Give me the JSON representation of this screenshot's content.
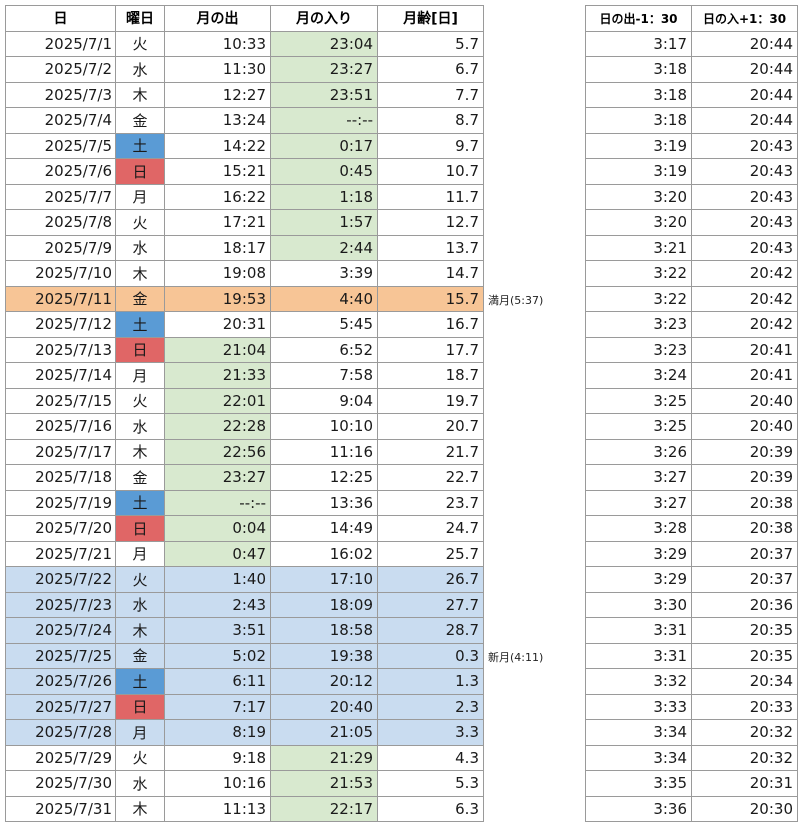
{
  "headers": {
    "date": "日",
    "dow": "曜日",
    "moonrise": "月の出",
    "moonset": "月の入り",
    "age": "月齢[日]",
    "sunrise_minus": "日の出-1：30",
    "sunset_plus": "日の入+1：30"
  },
  "colors": {
    "green": "#d8e9cf",
    "orange": "#f7c596",
    "blue": "#c9dcf0",
    "saturday": "#5a9bd5",
    "sunday": "#e06666"
  },
  "rows": [
    {
      "date": "2025/7/1",
      "dow": "火",
      "rise": "10:33",
      "set": "23:04",
      "age": "5.7",
      "sr": "3:17",
      "ss": "20:44",
      "rise_green": false,
      "set_green": true,
      "row": ""
    },
    {
      "date": "2025/7/2",
      "dow": "水",
      "rise": "11:30",
      "set": "23:27",
      "age": "6.7",
      "sr": "3:18",
      "ss": "20:44",
      "rise_green": false,
      "set_green": true,
      "row": ""
    },
    {
      "date": "2025/7/3",
      "dow": "木",
      "rise": "12:27",
      "set": "23:51",
      "age": "7.7",
      "sr": "3:18",
      "ss": "20:44",
      "rise_green": false,
      "set_green": true,
      "row": ""
    },
    {
      "date": "2025/7/4",
      "dow": "金",
      "rise": "13:24",
      "set": "--:--",
      "age": "8.7",
      "sr": "3:18",
      "ss": "20:44",
      "rise_green": false,
      "set_green": true,
      "row": ""
    },
    {
      "date": "2025/7/5",
      "dow": "土",
      "rise": "14:22",
      "set": "0:17",
      "age": "9.7",
      "sr": "3:19",
      "ss": "20:43",
      "rise_green": false,
      "set_green": true,
      "row": ""
    },
    {
      "date": "2025/7/6",
      "dow": "日",
      "rise": "15:21",
      "set": "0:45",
      "age": "10.7",
      "sr": "3:19",
      "ss": "20:43",
      "rise_green": false,
      "set_green": true,
      "row": ""
    },
    {
      "date": "2025/7/7",
      "dow": "月",
      "rise": "16:22",
      "set": "1:18",
      "age": "11.7",
      "sr": "3:20",
      "ss": "20:43",
      "rise_green": false,
      "set_green": true,
      "row": ""
    },
    {
      "date": "2025/7/8",
      "dow": "火",
      "rise": "17:21",
      "set": "1:57",
      "age": "12.7",
      "sr": "3:20",
      "ss": "20:43",
      "rise_green": false,
      "set_green": true,
      "row": ""
    },
    {
      "date": "2025/7/9",
      "dow": "水",
      "rise": "18:17",
      "set": "2:44",
      "age": "13.7",
      "sr": "3:21",
      "ss": "20:43",
      "rise_green": false,
      "set_green": true,
      "row": ""
    },
    {
      "date": "2025/7/10",
      "dow": "木",
      "rise": "19:08",
      "set": "3:39",
      "age": "14.7",
      "sr": "3:22",
      "ss": "20:42",
      "rise_green": false,
      "set_green": false,
      "row": ""
    },
    {
      "date": "2025/7/11",
      "dow": "金",
      "rise": "19:53",
      "set": "4:40",
      "age": "15.7",
      "sr": "3:22",
      "ss": "20:42",
      "rise_green": false,
      "set_green": false,
      "row": "orange",
      "note": "満月(5:37)"
    },
    {
      "date": "2025/7/12",
      "dow": "土",
      "rise": "20:31",
      "set": "5:45",
      "age": "16.7",
      "sr": "3:23",
      "ss": "20:42",
      "rise_green": false,
      "set_green": false,
      "row": ""
    },
    {
      "date": "2025/7/13",
      "dow": "日",
      "rise": "21:04",
      "set": "6:52",
      "age": "17.7",
      "sr": "3:23",
      "ss": "20:41",
      "rise_green": true,
      "set_green": false,
      "row": ""
    },
    {
      "date": "2025/7/14",
      "dow": "月",
      "rise": "21:33",
      "set": "7:58",
      "age": "18.7",
      "sr": "3:24",
      "ss": "20:41",
      "rise_green": true,
      "set_green": false,
      "row": ""
    },
    {
      "date": "2025/7/15",
      "dow": "火",
      "rise": "22:01",
      "set": "9:04",
      "age": "19.7",
      "sr": "3:25",
      "ss": "20:40",
      "rise_green": true,
      "set_green": false,
      "row": ""
    },
    {
      "date": "2025/7/16",
      "dow": "水",
      "rise": "22:28",
      "set": "10:10",
      "age": "20.7",
      "sr": "3:25",
      "ss": "20:40",
      "rise_green": true,
      "set_green": false,
      "row": ""
    },
    {
      "date": "2025/7/17",
      "dow": "木",
      "rise": "22:56",
      "set": "11:16",
      "age": "21.7",
      "sr": "3:26",
      "ss": "20:39",
      "rise_green": true,
      "set_green": false,
      "row": ""
    },
    {
      "date": "2025/7/18",
      "dow": "金",
      "rise": "23:27",
      "set": "12:25",
      "age": "22.7",
      "sr": "3:27",
      "ss": "20:39",
      "rise_green": true,
      "set_green": false,
      "row": ""
    },
    {
      "date": "2025/7/19",
      "dow": "土",
      "rise": "--:--",
      "set": "13:36",
      "age": "23.7",
      "sr": "3:27",
      "ss": "20:38",
      "rise_green": true,
      "set_green": false,
      "row": ""
    },
    {
      "date": "2025/7/20",
      "dow": "日",
      "rise": "0:04",
      "set": "14:49",
      "age": "24.7",
      "sr": "3:28",
      "ss": "20:38",
      "rise_green": true,
      "set_green": false,
      "row": ""
    },
    {
      "date": "2025/7/21",
      "dow": "月",
      "rise": "0:47",
      "set": "16:02",
      "age": "25.7",
      "sr": "3:29",
      "ss": "20:37",
      "rise_green": true,
      "set_green": false,
      "row": ""
    },
    {
      "date": "2025/7/22",
      "dow": "火",
      "rise": "1:40",
      "set": "17:10",
      "age": "26.7",
      "sr": "3:29",
      "ss": "20:37",
      "rise_green": false,
      "set_green": false,
      "row": "blue"
    },
    {
      "date": "2025/7/23",
      "dow": "水",
      "rise": "2:43",
      "set": "18:09",
      "age": "27.7",
      "sr": "3:30",
      "ss": "20:36",
      "rise_green": false,
      "set_green": false,
      "row": "blue"
    },
    {
      "date": "2025/7/24",
      "dow": "木",
      "rise": "3:51",
      "set": "18:58",
      "age": "28.7",
      "sr": "3:31",
      "ss": "20:35",
      "rise_green": false,
      "set_green": false,
      "row": "blue"
    },
    {
      "date": "2025/7/25",
      "dow": "金",
      "rise": "5:02",
      "set": "19:38",
      "age": "0.3",
      "sr": "3:31",
      "ss": "20:35",
      "rise_green": false,
      "set_green": false,
      "row": "blue",
      "note": "新月(4:11)"
    },
    {
      "date": "2025/7/26",
      "dow": "土",
      "rise": "6:11",
      "set": "20:12",
      "age": "1.3",
      "sr": "3:32",
      "ss": "20:34",
      "rise_green": false,
      "set_green": false,
      "row": "blue"
    },
    {
      "date": "2025/7/27",
      "dow": "日",
      "rise": "7:17",
      "set": "20:40",
      "age": "2.3",
      "sr": "3:33",
      "ss": "20:33",
      "rise_green": false,
      "set_green": false,
      "row": "blue"
    },
    {
      "date": "2025/7/28",
      "dow": "月",
      "rise": "8:19",
      "set": "21:05",
      "age": "3.3",
      "sr": "3:34",
      "ss": "20:32",
      "rise_green": false,
      "set_green": false,
      "row": "blue"
    },
    {
      "date": "2025/7/29",
      "dow": "火",
      "rise": "9:18",
      "set": "21:29",
      "age": "4.3",
      "sr": "3:34",
      "ss": "20:32",
      "rise_green": false,
      "set_green": true,
      "row": ""
    },
    {
      "date": "2025/7/30",
      "dow": "水",
      "rise": "10:16",
      "set": "21:53",
      "age": "5.3",
      "sr": "3:35",
      "ss": "20:31",
      "rise_green": false,
      "set_green": true,
      "row": ""
    },
    {
      "date": "2025/7/31",
      "dow": "木",
      "rise": "11:13",
      "set": "22:17",
      "age": "6.3",
      "sr": "3:36",
      "ss": "20:30",
      "rise_green": false,
      "set_green": true,
      "row": ""
    }
  ]
}
